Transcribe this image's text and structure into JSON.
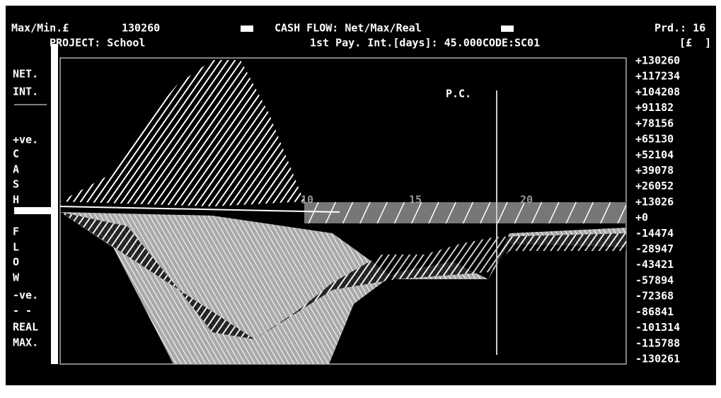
{
  "header": {
    "max_min_label": "Max/Min.£",
    "max_min_value": "130260",
    "marker_left": "■■",
    "title": "CASH FLOW: Net/Max/Real",
    "marker_right": "■■",
    "period": "Prd.: 16",
    "project": "PROJECT: School",
    "payment": "1st Pay. Int.[days]: 45.000CODE:SC01",
    "currency": "[£  ]"
  },
  "left_labels": [
    "NET.",
    "INT.",
    "+ve.",
    "C",
    "A",
    "S",
    "H",
    "F",
    "L",
    "O",
    "W",
    "-ve.",
    "- -",
    "REAL",
    "MAX."
  ],
  "right_ticks": [
    "+130260",
    "+117234",
    "+104208",
    "+91182",
    "+78156",
    "+65130",
    "+52104",
    "+39078",
    "+26052",
    "+13026",
    "+0",
    "-14474",
    "-28947",
    "-43421",
    "-57894",
    "-72368",
    "-86841",
    "-101314",
    "-115788",
    "-130261"
  ],
  "period_marks": [
    "10",
    "15",
    "20"
  ],
  "marker": "P.C."
}
